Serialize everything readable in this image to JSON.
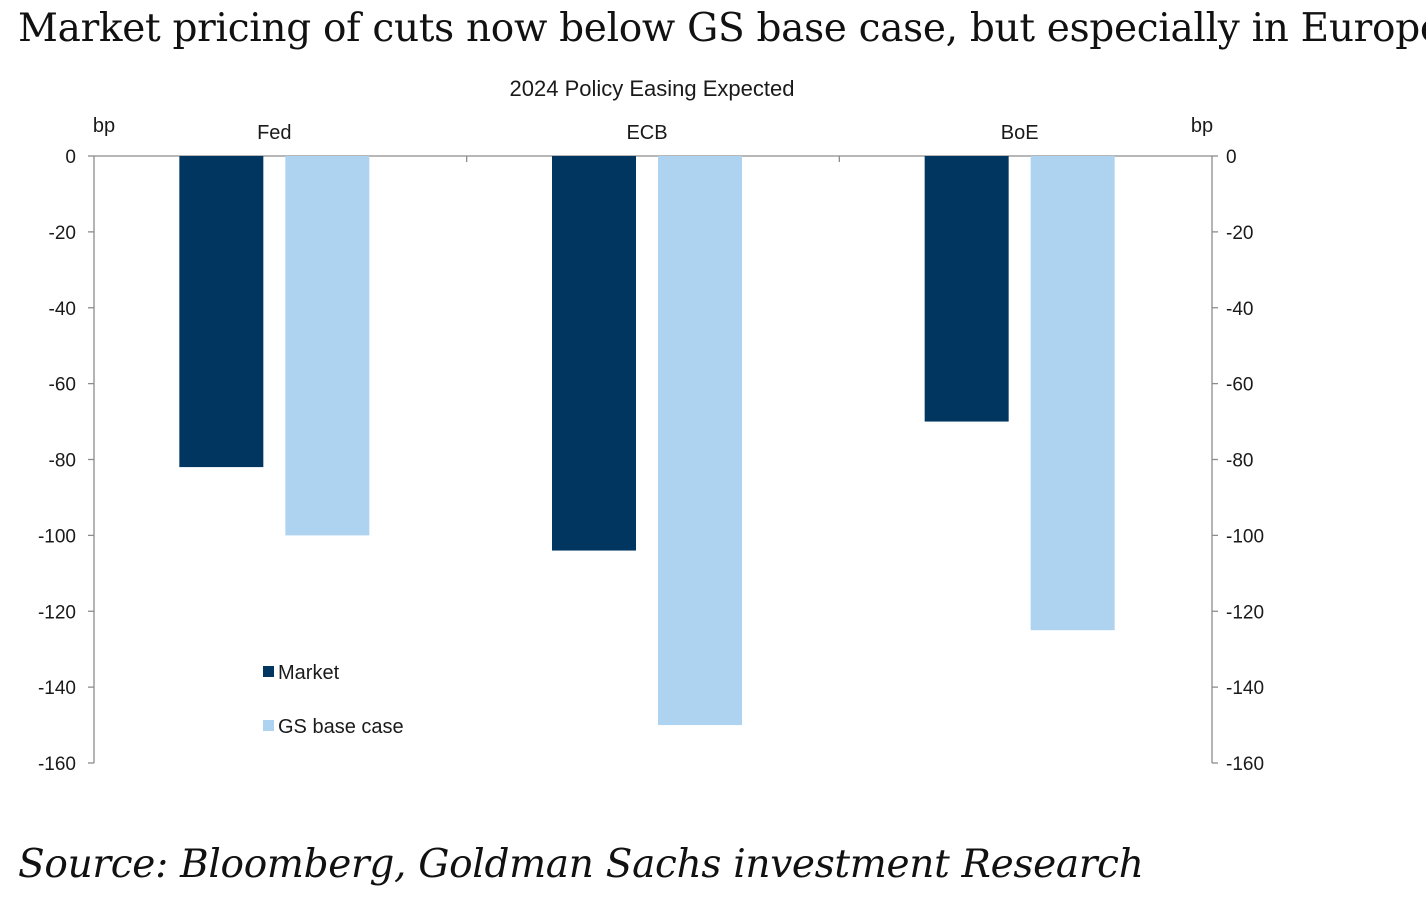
{
  "headline": "Market pricing of cuts now below GS base case, but especially in Europe",
  "source": "Source: Bloomberg, Goldman Sachs investment Research",
  "colors": {
    "market": "#00365f",
    "gs": "#aed3f0",
    "axis": "#8c8c8c",
    "text": "#1a1a1a"
  },
  "chart_data": {
    "type": "bar",
    "title": "2024 Policy Easing Expected",
    "ylabel_left": "bp",
    "ylabel_right": "bp",
    "ylim": [
      -160,
      0
    ],
    "yticks": [
      0,
      -20,
      -40,
      -60,
      -80,
      -100,
      -120,
      -140,
      -160
    ],
    "categories": [
      "Fed",
      "ECB",
      "BoE"
    ],
    "series": [
      {
        "name": "Market",
        "values": [
          -82,
          -104,
          -70
        ]
      },
      {
        "name": "GS base case",
        "values": [
          -100,
          -150,
          -125
        ]
      }
    ],
    "legend_position": "bottom-left",
    "grid": false
  }
}
